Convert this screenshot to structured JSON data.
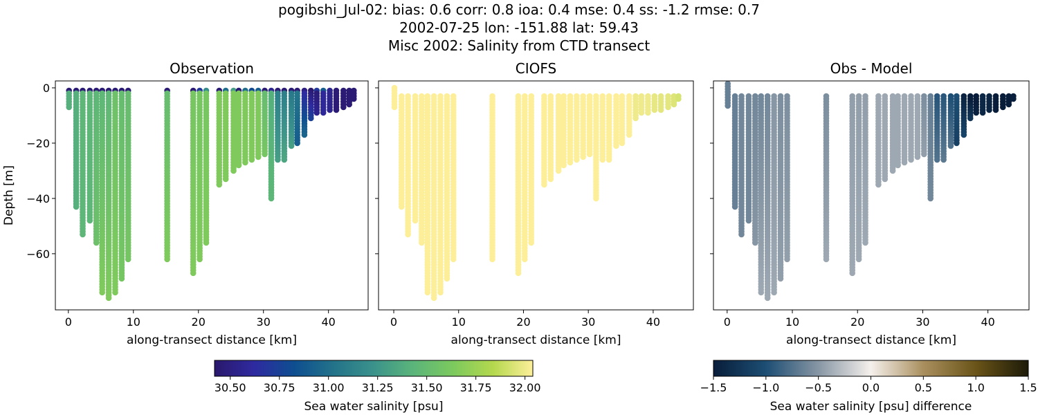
{
  "figure": {
    "title_lines": [
      "pogibshi_Jul-02: bias: 0.6  corr: 0.8  ioa: 0.4  mse: 0.4  ss: -1.2  rmse: 0.7",
      "2002-07-25 lon: -151.88 lat: 59.43",
      "Misc 2002: Salinity from CTD transect"
    ]
  },
  "chart_data": [
    {
      "type": "scatter",
      "title": "Observation",
      "xlabel": "along-transect distance [km]",
      "ylabel": "Depth [m]",
      "xlim": [
        -2.0,
        46.1
      ],
      "ylim": [
        -80.3,
        2.5
      ],
      "xticks": [
        0,
        10,
        20,
        30,
        40
      ],
      "yticks": [
        0,
        -20,
        -40,
        -60
      ],
      "colorbar": "salinity",
      "variable": "obs"
    },
    {
      "type": "scatter",
      "title": "CIOFS",
      "xlabel": "along-transect distance [km]",
      "ylabel": "",
      "xlim": [
        -2.35,
        46.2
      ],
      "ylim": [
        -80.3,
        2.5
      ],
      "xticks": [
        0,
        10,
        20,
        30,
        40
      ],
      "yticks": [
        0,
        -20,
        -40,
        -60
      ],
      "colorbar": "salinity",
      "variable": "model"
    },
    {
      "type": "scatter",
      "title": "Obs - Model",
      "xlabel": "along-transect distance [km]",
      "ylabel": "",
      "xlim": [
        -2.1,
        46.3
      ],
      "ylim": [
        -80.3,
        2.5
      ],
      "xticks": [
        0,
        10,
        20,
        30,
        40
      ],
      "yticks": [
        0,
        -20,
        -40,
        -60
      ],
      "colorbar": "difference",
      "variable": "diff"
    }
  ],
  "casts": [
    {
      "x": 0.1,
      "bottom": -7,
      "obs_surface": 30.45,
      "obs_upper": 31.4,
      "obs_lower": 31.4,
      "model": 32.05
    },
    {
      "x": 1.2,
      "bottom": -43,
      "obs_surface": 30.45,
      "obs_upper": 31.4,
      "obs_lower": 31.4,
      "model": 32.05
    },
    {
      "x": 2.2,
      "bottom": -53.7,
      "obs_surface": 30.45,
      "obs_upper": 31.45,
      "obs_lower": 31.45,
      "model": 32.05
    },
    {
      "x": 3.3,
      "bottom": -48.7,
      "obs_surface": 30.45,
      "obs_upper": 31.45,
      "obs_lower": 31.45,
      "model": 32.05
    },
    {
      "x": 4.3,
      "bottom": -56.6,
      "obs_surface": 30.45,
      "obs_upper": 31.45,
      "obs_lower": 31.55,
      "model": 32.05
    },
    {
      "x": 5.2,
      "bottom": -74.6,
      "obs_surface": 30.45,
      "obs_upper": 31.45,
      "obs_lower": 31.65,
      "model": 32.05
    },
    {
      "x": 6.2,
      "bottom": -76.6,
      "obs_surface": 30.45,
      "obs_upper": 31.45,
      "obs_lower": 31.65,
      "model": 32.05
    },
    {
      "x": 7.2,
      "bottom": -74.8,
      "obs_surface": 30.45,
      "obs_upper": 31.55,
      "obs_lower": 31.65,
      "model": 32.05
    },
    {
      "x": 8.2,
      "bottom": -69.8,
      "obs_surface": 30.45,
      "obs_upper": 31.5,
      "obs_lower": 31.6,
      "model": 32.05
    },
    {
      "x": 9.2,
      "bottom": -62.4,
      "obs_surface": 30.45,
      "obs_upper": 31.5,
      "obs_lower": 31.6,
      "model": 32.05
    },
    {
      "x": 15.2,
      "bottom": -62.4,
      "obs_surface": 30.45,
      "obs_upper": 31.5,
      "obs_lower": 31.65,
      "model": 32.05
    },
    {
      "x": 19.2,
      "bottom": -67.6,
      "obs_surface": 30.45,
      "obs_upper": 31.6,
      "obs_lower": 31.65,
      "model": 32.05
    },
    {
      "x": 20.2,
      "bottom": -62.4,
      "obs_surface": 30.7,
      "obs_upper": 31.6,
      "obs_lower": 31.65,
      "model": 32.05
    },
    {
      "x": 21.2,
      "bottom": -56.6,
      "obs_surface": 31.2,
      "obs_upper": 31.6,
      "obs_lower": 31.65,
      "model": 32.05
    },
    {
      "x": 23.2,
      "bottom": -35.3,
      "obs_surface": 30.45,
      "obs_upper": 31.65,
      "obs_lower": 31.65,
      "model": 32.05
    },
    {
      "x": 24.2,
      "bottom": -33.4,
      "obs_surface": 31.0,
      "obs_upper": 31.65,
      "obs_lower": 31.65,
      "model": 32.05
    },
    {
      "x": 25.4,
      "bottom": -30.4,
      "obs_surface": 31.3,
      "obs_upper": 31.65,
      "obs_lower": 31.65,
      "model": 32.05
    },
    {
      "x": 26.2,
      "bottom": -28.3,
      "obs_surface": 30.45,
      "obs_upper": 31.65,
      "obs_lower": 31.65,
      "model": 32.05
    },
    {
      "x": 27.2,
      "bottom": -27.3,
      "obs_surface": 31.0,
      "obs_upper": 31.65,
      "obs_lower": 31.65,
      "model": 32.05
    },
    {
      "x": 28.2,
      "bottom": -26.4,
      "obs_surface": 30.8,
      "obs_upper": 31.65,
      "obs_lower": 31.65,
      "model": 32.05
    },
    {
      "x": 29.2,
      "bottom": -25.3,
      "obs_surface": 30.9,
      "obs_upper": 31.65,
      "obs_lower": 31.65,
      "model": 32.05
    },
    {
      "x": 30.2,
      "bottom": -24.1,
      "obs_surface": 30.45,
      "obs_upper": 31.5,
      "obs_lower": 31.6,
      "model": 32.05
    },
    {
      "x": 31.2,
      "bottom": -40.4,
      "obs_surface": 30.55,
      "obs_upper": 31.4,
      "obs_lower": 31.45,
      "model": 32.05
    },
    {
      "x": 32.2,
      "bottom": -26.4,
      "obs_surface": 30.45,
      "obs_upper": 31.1,
      "obs_lower": 31.3,
      "model": 32.05
    },
    {
      "x": 33.2,
      "bottom": -26.4,
      "obs_surface": 30.45,
      "obs_upper": 31.1,
      "obs_lower": 31.35,
      "model": 32.05
    },
    {
      "x": 34.3,
      "bottom": -21.2,
      "obs_surface": 30.45,
      "obs_upper": 31.05,
      "obs_lower": 31.3,
      "model": 32.05
    },
    {
      "x": 35.2,
      "bottom": -20.3,
      "obs_surface": 30.45,
      "obs_upper": 31.05,
      "obs_lower": 30.9,
      "model": 32.05
    },
    {
      "x": 36.3,
      "bottom": -17.3,
      "obs_surface": 30.5,
      "obs_upper": 30.6,
      "obs_lower": 30.95,
      "model": 32.05
    },
    {
      "x": 37.3,
      "bottom": -11.2,
      "obs_surface": 30.42,
      "obs_upper": 30.45,
      "obs_lower": 30.75,
      "model": 32.0
    },
    {
      "x": 38.2,
      "bottom": -9.1,
      "obs_surface": 30.7,
      "obs_upper": 30.45,
      "obs_lower": 30.55,
      "model": 32.0
    },
    {
      "x": 39.2,
      "bottom": -9.1,
      "obs_surface": 30.9,
      "obs_upper": 30.6,
      "obs_lower": 30.6,
      "model": 32.0
    },
    {
      "x": 40.2,
      "bottom": -8.3,
      "obs_surface": 30.55,
      "obs_upper": 30.55,
      "obs_lower": 30.55,
      "model": 31.98
    },
    {
      "x": 41.2,
      "bottom": -8.0,
      "obs_surface": 30.45,
      "obs_upper": 30.45,
      "obs_lower": 30.45,
      "model": 31.97
    },
    {
      "x": 42.3,
      "bottom": -7.3,
      "obs_surface": 30.45,
      "obs_upper": 30.45,
      "obs_lower": 30.45,
      "model": 31.97
    },
    {
      "x": 43.2,
      "bottom": -6.2,
      "obs_surface": 30.45,
      "obs_upper": 30.45,
      "obs_lower": 30.45,
      "model": 31.95
    },
    {
      "x": 43.9,
      "bottom": -4.0,
      "obs_surface": 30.45,
      "obs_upper": 30.45,
      "obs_lower": 30.45,
      "model": 31.93
    }
  ],
  "colorbars": {
    "salinity": {
      "label": "Sea water salinity [psu]",
      "range": [
        30.42,
        32.04
      ],
      "ticks": [
        "30.50",
        "30.75",
        "31.00",
        "31.25",
        "31.50",
        "31.75",
        "32.00"
      ],
      "colormap": [
        "#2a186c",
        "#2e2aa0",
        "#0e4e90",
        "#23738a",
        "#3b928b",
        "#5bb57a",
        "#7cc95e",
        "#b4d84e",
        "#fdef9a"
      ]
    },
    "difference": {
      "label": "Sea water salinity [psu] difference",
      "range": [
        -1.5,
        1.5
      ],
      "ticks": [
        "−1.5",
        "−1.0",
        "−0.5",
        "0.0",
        "0.5",
        "1.0",
        "1.5"
      ],
      "colormap": [
        "#081d3a",
        "#1d4e74",
        "#8796a4",
        "#f5f0ec",
        "#a98f5e",
        "#6a5418",
        "#1c1a08"
      ]
    }
  }
}
